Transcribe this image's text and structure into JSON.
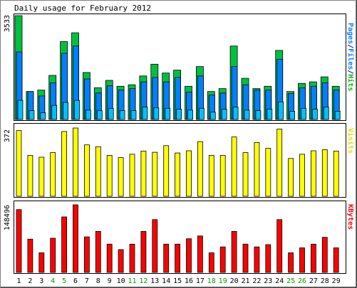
{
  "chart_data": {
    "type": "bar",
    "title": "Daily usage for February 2012",
    "categories": [
      "1",
      "2",
      "3",
      "4",
      "5",
      "6",
      "7",
      "8",
      "9",
      "10",
      "11",
      "12",
      "13",
      "14",
      "15",
      "16",
      "17",
      "18",
      "19",
      "20",
      "21",
      "22",
      "23",
      "24",
      "25",
      "26",
      "27",
      "28",
      "29"
    ],
    "weekend_days": [
      "4",
      "5",
      "11",
      "12",
      "18",
      "19",
      "25",
      "26"
    ],
    "panels": [
      {
        "id": "hits",
        "max_label": "3533",
        "ylim": [
          0,
          3533
        ],
        "legend": [
          {
            "text": "Pages",
            "color": "#0080ff"
          },
          {
            "text": "/",
            "color": "#0000ff"
          },
          {
            "text": "Files",
            "color": "#0080ff"
          },
          {
            "text": "/",
            "color": "#0000ff"
          },
          {
            "text": "Hits",
            "color": "#00c000"
          }
        ],
        "series": [
          {
            "name": "Hits",
            "color": "#00c040",
            "values": [
              3533,
              950,
              1000,
              1500,
              2650,
              2950,
              1600,
              1080,
              1330,
              1130,
              1180,
              1480,
              1880,
              1580,
              1680,
              1130,
              1800,
              950,
              1050,
              2500,
              1400,
              1050,
              1130,
              2350,
              950,
              1230,
              1280,
              1450,
              1130
            ]
          },
          {
            "name": "Files",
            "color": "#0080ff",
            "values": [
              2300,
              950,
              800,
              1250,
              2250,
              2500,
              1380,
              900,
              1150,
              1000,
              1050,
              1280,
              1430,
              1280,
              1430,
              930,
              1480,
              830,
              900,
              1800,
              1180,
              1000,
              1000,
              2050,
              880,
              1080,
              1130,
              1250,
              1000
            ]
          },
          {
            "name": "Pages",
            "color": "#00c0ff",
            "values": [
              650,
              300,
              230,
              480,
              580,
              650,
              320,
              300,
              380,
              300,
              300,
              420,
              400,
              380,
              350,
              320,
              380,
              250,
              350,
              420,
              320,
              300,
              350,
              600,
              280,
              380,
              350,
              420,
              280
            ]
          }
        ]
      },
      {
        "id": "visits",
        "max_label": "372",
        "ylim": [
          0,
          372
        ],
        "legend": [
          {
            "text": "Visits",
            "color": "#e0e000"
          }
        ],
        "series": [
          {
            "name": "Visits",
            "color": "#ffff00",
            "values": [
              358,
              223,
              213,
              238,
              353,
              372,
              280,
              270,
              223,
              211,
              229,
              246,
              240,
              276,
              236,
              248,
              298,
              223,
              223,
              323,
              238,
              293,
              261,
              366,
              206,
              229,
              248,
              254,
              246
            ]
          }
        ]
      },
      {
        "id": "kbytes",
        "max_label": "148496",
        "ylim": [
          0,
          148496
        ],
        "legend": [
          {
            "text": "KBytes",
            "color": "#ff0000"
          }
        ],
        "series": [
          {
            "name": "KBytes",
            "color": "#ff0000",
            "values": [
              138000,
              73000,
              43000,
              75000,
              122000,
              148496,
              78000,
              90000,
              62000,
              50000,
              62000,
              90000,
              116000,
              62000,
              62000,
              74000,
              80000,
              43000,
              56000,
              90000,
              62000,
              56000,
              61000,
              116000,
              43000,
              54000,
              62000,
              77000,
              54000
            ]
          }
        ]
      }
    ]
  }
}
